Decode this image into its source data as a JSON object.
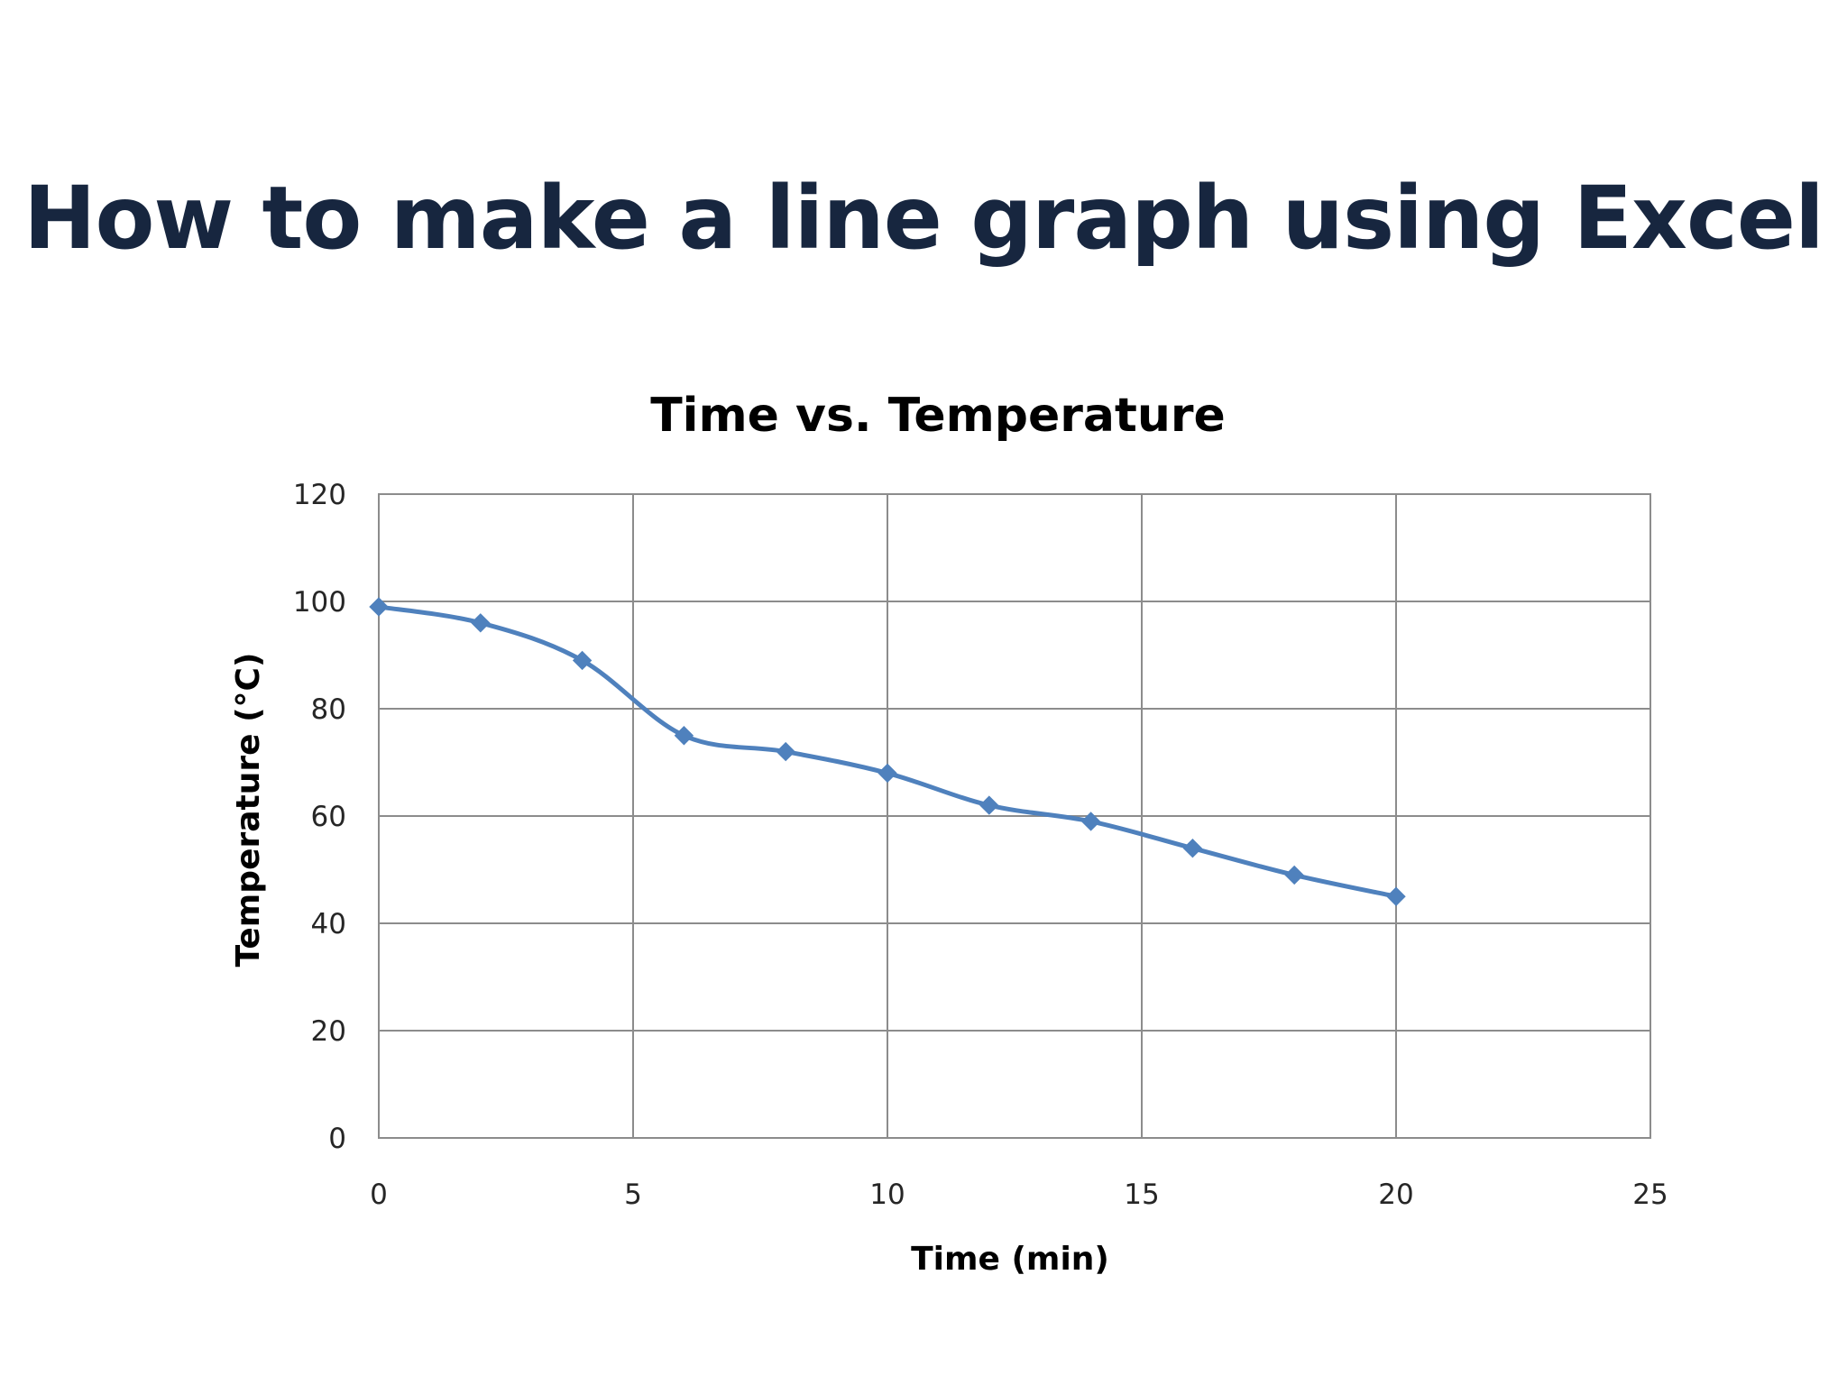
{
  "slide": {
    "title": "How to make a line graph using Excel"
  },
  "colors": {
    "title": "#17263f",
    "series": "#4f81bd",
    "grid": "#8c8c8c"
  },
  "chart_data": {
    "type": "scatter",
    "title": "Time vs. Temperature",
    "xlabel": "Time (min)",
    "ylabel": "Temperature (°C)",
    "xlim": [
      0,
      25
    ],
    "ylim": [
      0,
      120
    ],
    "x_ticks": [
      0,
      5,
      10,
      15,
      20,
      25
    ],
    "y_ticks": [
      0,
      20,
      40,
      60,
      80,
      100,
      120
    ],
    "grid": true,
    "legend": "none",
    "marker": "diamond",
    "line": "smoothed",
    "series": [
      {
        "x": [
          0,
          2,
          4,
          6,
          8,
          10,
          12,
          14,
          16,
          18,
          20
        ],
        "y": [
          99,
          96,
          89,
          75,
          72,
          68,
          62,
          59,
          54,
          49,
          45
        ]
      }
    ]
  }
}
